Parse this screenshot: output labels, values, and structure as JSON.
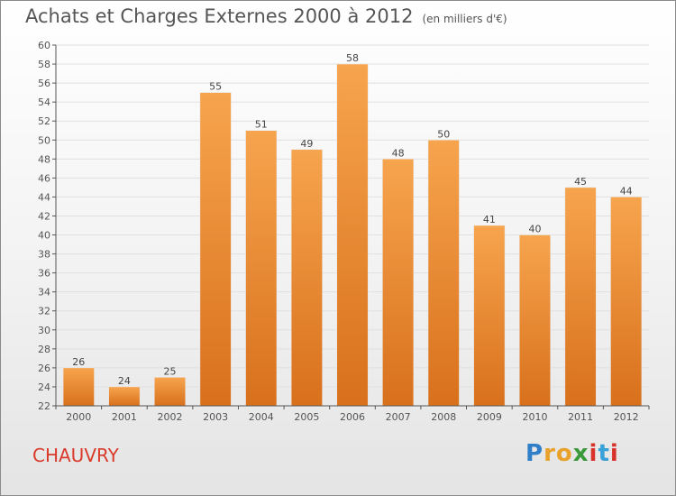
{
  "page": {
    "title": "Achats et Charges Externes 2000 à 2012",
    "unit_note": "(en milliers d'€)",
    "commune": "CHAUVRY",
    "logo": {
      "text": "Proxiti",
      "letters": [
        "P",
        "r",
        "o",
        "x",
        "i",
        "t",
        "i"
      ],
      "letter_colors": [
        "#2f7fc8",
        "#e8a12a",
        "#e8a12a",
        "#3a9a3a",
        "#d8342c",
        "#3aa0d8",
        "#d8342c"
      ]
    }
  },
  "chart_data": {
    "type": "bar",
    "categories": [
      "2000",
      "2001",
      "2002",
      "2003",
      "2004",
      "2005",
      "2006",
      "2007",
      "2008",
      "2009",
      "2010",
      "2011",
      "2012"
    ],
    "values": [
      26,
      24,
      25,
      55,
      51,
      49,
      58,
      48,
      50,
      41,
      40,
      45,
      44
    ],
    "ylim": [
      22,
      60
    ],
    "y_ticks": [
      "22",
      "24",
      "26",
      "28",
      "30",
      "32",
      "34",
      "36",
      "38",
      "40",
      "42",
      "44",
      "46",
      "48",
      "50",
      "52",
      "54",
      "56",
      "58",
      "60"
    ],
    "grid": true,
    "data_labels": true,
    "bar_color_top": "#f7a44e",
    "bar_color_bottom": "#d8701c",
    "gridline_color": "#e0e0e0",
    "axis_color": "#555555"
  }
}
